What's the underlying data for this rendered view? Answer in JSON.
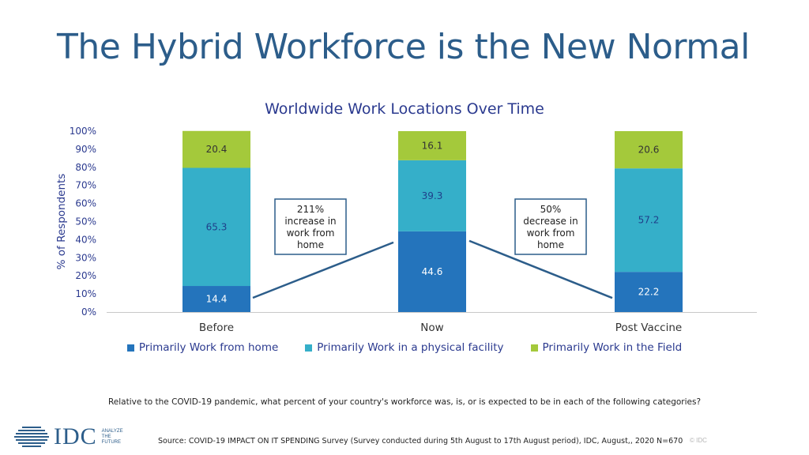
{
  "slide": {
    "title": "The Hybrid Workforce is the New Normal",
    "question": "Relative to the COVID-19 pandemic, what percent of your country's workforce was, is, or is expected to be in each of the following categories?",
    "source": "Source: COVID-19 IMPACT ON IT SPENDING Survey (Survey conducted during 5th August to 17th August period), IDC, August,, 2020 N=670",
    "copyright": "© IDC",
    "logo": {
      "name": "IDC",
      "tagline": [
        "ANALYZE",
        "THE",
        "FUTURE"
      ]
    }
  },
  "chart_data": {
    "type": "bar",
    "stacked": true,
    "title": "Worldwide Work Locations Over Time",
    "ylabel": "% of Respondents",
    "xlabel": "",
    "ylim": [
      0,
      100
    ],
    "yticks": [
      "0%",
      "10%",
      "20%",
      "30%",
      "40%",
      "50%",
      "60%",
      "70%",
      "80%",
      "90%",
      "100%"
    ],
    "categories": [
      "Before",
      "Now",
      "Post Vaccine"
    ],
    "series": [
      {
        "name": "Primarily Work from home",
        "values": [
          14.4,
          44.6,
          22.2
        ],
        "color": "#2474bc"
      },
      {
        "name": "Primarily Work in a physical facility",
        "values": [
          65.3,
          39.3,
          57.2
        ],
        "color": "#35afc9"
      },
      {
        "name": "Primarily Work in the Field",
        "values": [
          20.4,
          16.1,
          20.6
        ],
        "color": "#a4c93b"
      }
    ],
    "annotations": [
      {
        "text": [
          "211%",
          "increase in",
          "work from",
          "home"
        ]
      },
      {
        "text": [
          "50%",
          "decrease in",
          "work from",
          "home"
        ]
      }
    ],
    "legend": "bottom",
    "grid": false
  }
}
